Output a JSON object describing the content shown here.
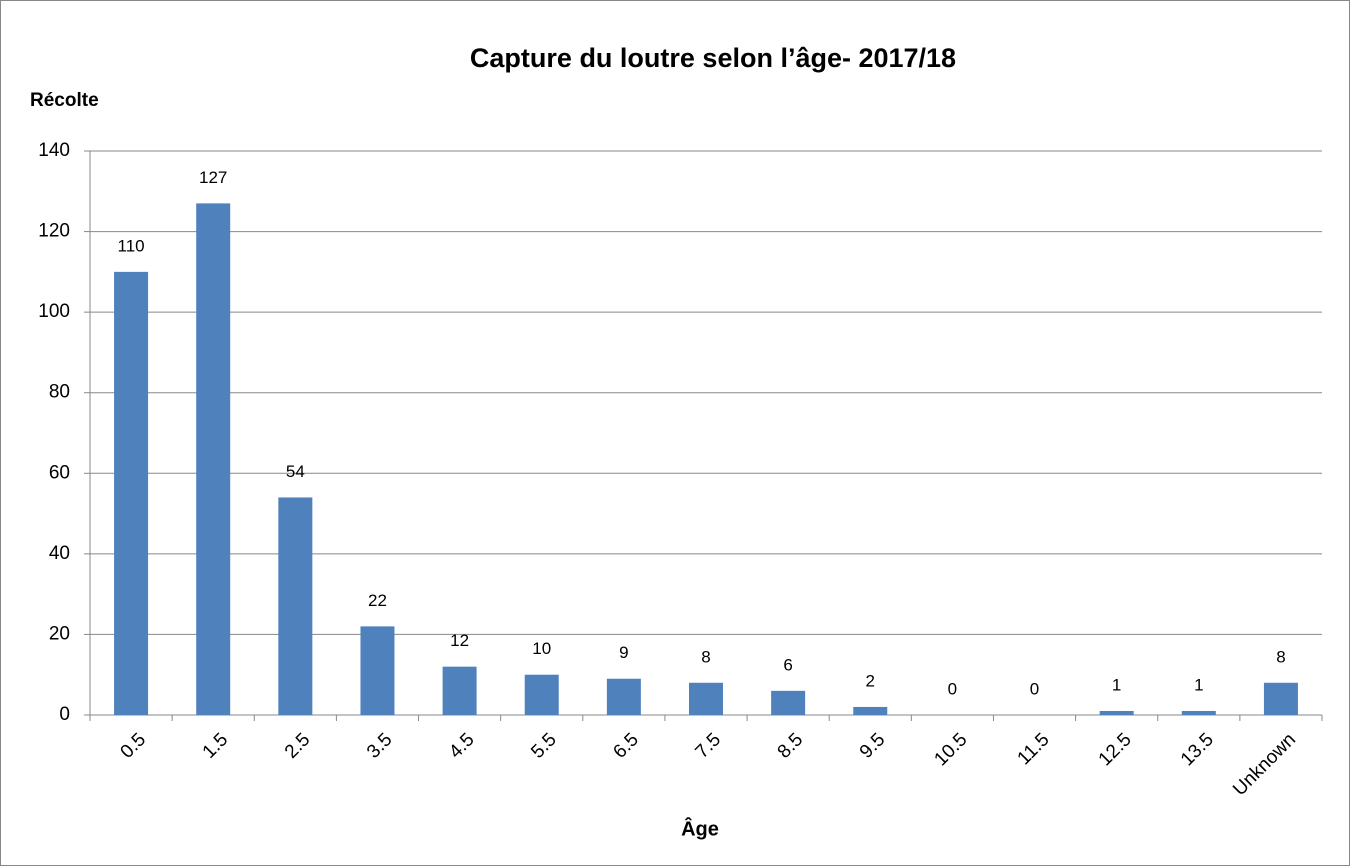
{
  "chart_data": {
    "type": "bar",
    "title": "Capture du loutre selon l’âge- 2017/18",
    "y_label": "Récolte",
    "x_label": "Âge",
    "categories": [
      "0.5",
      "1.5",
      "2.5",
      "3.5",
      "4.5",
      "5.5",
      "6.5",
      "7.5",
      "8.5",
      "9.5",
      "10.5",
      "11.5",
      "12.5",
      "13.5",
      "Unknown"
    ],
    "values": [
      110,
      127,
      54,
      22,
      12,
      10,
      9,
      8,
      6,
      2,
      0,
      0,
      1,
      1,
      8
    ],
    "color": "#4f81bd",
    "ylim": [
      0,
      140
    ],
    "yticks": [
      0,
      20,
      40,
      60,
      80,
      100,
      120,
      140
    ],
    "grid": true
  }
}
